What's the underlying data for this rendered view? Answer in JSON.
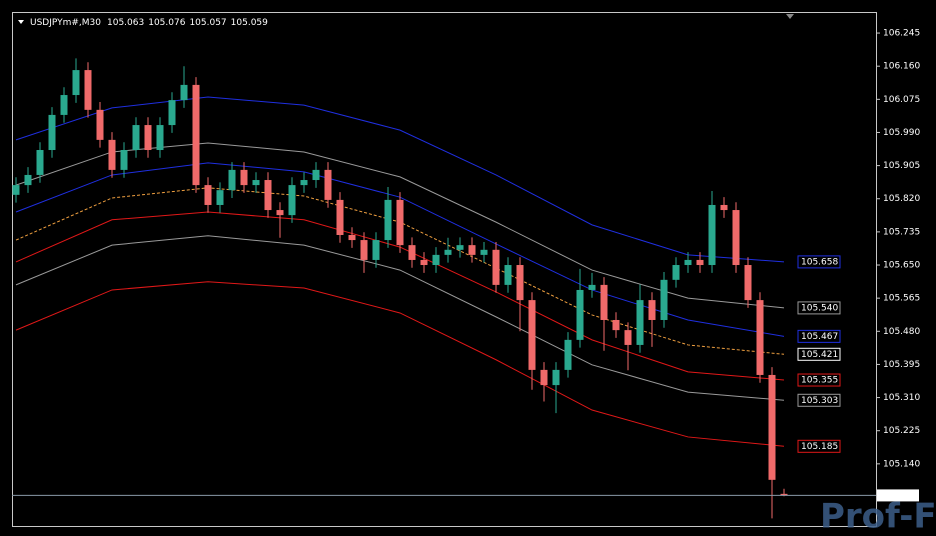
{
  "chart_data": {
    "type": "candlestick",
    "title": "USDJPYm#,M30",
    "header_values": [
      105.063,
      105.076,
      105.057,
      105.059
    ],
    "up_color": "#2aa98f",
    "down_color": "#f06a6a",
    "ylim": [
      104.978,
      106.299
    ],
    "yticks": [
      106.245,
      {
        "value": 106.16,
        "label": "106.160"
      },
      106.075,
      {
        "value": 105.99,
        "label": "105.990"
      },
      105.905,
      {
        "value": 105.82,
        "label": "105.820"
      },
      105.735,
      {
        "value": 105.65,
        "label": "105.650"
      },
      105.565,
      {
        "value": 105.48,
        "label": "105.480"
      },
      105.395,
      {
        "value": 105.31,
        "label": "105.310"
      },
      105.225,
      {
        "value": 105.14,
        "label": "105.140"
      }
    ],
    "open": [
      105.83,
      105.855,
      105.881,
      105.945,
      106.035,
      106.086,
      106.15,
      106.048,
      105.971,
      105.894,
      105.945,
      106.009,
      105.945,
      106.009,
      106.073,
      106.112,
      105.855,
      105.804,
      105.842,
      105.894,
      105.855,
      105.868,
      105.791,
      105.778,
      105.855,
      105.868,
      105.894,
      105.817,
      105.727,
      105.714,
      105.663,
      105.714,
      105.817,
      105.701,
      105.663,
      105.65,
      105.676,
      105.689,
      105.701,
      105.676,
      105.689,
      105.599,
      105.65,
      105.56,
      105.381,
      105.342,
      105.381,
      105.458,
      105.586,
      105.599,
      105.509,
      105.483,
      105.445,
      105.56,
      105.509,
      105.612,
      105.65,
      105.663,
      105.65,
      105.804,
      105.791,
      105.65,
      105.56,
      105.368,
      105.063
    ],
    "high": [
      105.875,
      105.901,
      105.965,
      106.055,
      106.106,
      106.18,
      106.17,
      106.068,
      105.991,
      105.965,
      106.029,
      106.029,
      106.029,
      106.093,
      106.16,
      106.132,
      105.875,
      105.862,
      105.914,
      105.914,
      105.888,
      105.888,
      105.811,
      105.875,
      105.888,
      105.914,
      105.914,
      105.837,
      105.747,
      105.734,
      105.734,
      105.85,
      105.837,
      105.721,
      105.683,
      105.696,
      105.72,
      105.721,
      105.721,
      105.709,
      105.709,
      105.67,
      105.67,
      105.58,
      105.401,
      105.401,
      105.478,
      105.64,
      105.63,
      105.619,
      105.529,
      105.503,
      105.6,
      105.58,
      105.632,
      105.67,
      105.683,
      105.683,
      105.84,
      105.824,
      105.811,
      105.67,
      105.58,
      105.388,
      105.076
    ],
    "low": [
      105.81,
      105.835,
      105.861,
      105.925,
      106.015,
      106.066,
      106.028,
      105.951,
      105.874,
      105.874,
      105.925,
      105.925,
      105.925,
      105.989,
      106.053,
      105.835,
      105.784,
      105.784,
      105.822,
      105.835,
      105.835,
      105.771,
      105.72,
      105.758,
      105.835,
      105.848,
      105.797,
      105.707,
      105.694,
      105.63,
      105.643,
      105.694,
      105.681,
      105.643,
      105.63,
      105.63,
      105.656,
      105.669,
      105.656,
      105.656,
      105.579,
      105.579,
      105.48,
      105.33,
      105.3,
      105.27,
      105.361,
      105.438,
      105.566,
      105.43,
      105.463,
      105.38,
      105.425,
      105.44,
      105.489,
      105.592,
      105.63,
      105.63,
      105.63,
      105.771,
      105.63,
      105.54,
      105.348,
      105.0,
      105.057
    ],
    "close": [
      105.855,
      105.881,
      105.945,
      106.035,
      106.086,
      106.15,
      106.048,
      105.971,
      105.894,
      105.945,
      106.009,
      105.945,
      106.009,
      106.073,
      106.112,
      105.855,
      105.804,
      105.842,
      105.894,
      105.855,
      105.868,
      105.791,
      105.778,
      105.855,
      105.868,
      105.894,
      105.817,
      105.727,
      105.714,
      105.663,
      105.714,
      105.817,
      105.701,
      105.663,
      105.65,
      105.676,
      105.689,
      105.701,
      105.676,
      105.689,
      105.599,
      105.65,
      105.56,
      105.381,
      105.342,
      105.381,
      105.458,
      105.586,
      105.599,
      105.509,
      105.483,
      105.445,
      105.56,
      105.509,
      105.612,
      105.65,
      105.663,
      105.65,
      105.804,
      105.791,
      105.65,
      105.56,
      105.368,
      105.099,
      105.059
    ],
    "band_x": [
      0,
      8,
      16,
      24,
      32,
      40,
      48,
      56,
      64
    ],
    "series": [
      {
        "color": "#1f2fe0",
        "values": [
          105.971,
          106.053,
          106.081,
          106.06,
          105.996,
          105.881,
          105.753,
          105.676,
          105.658
        ],
        "end_label": 105.658
      },
      {
        "color": "#9a9a9a",
        "values": [
          105.855,
          105.94,
          105.963,
          105.94,
          105.876,
          105.76,
          105.637,
          105.565,
          105.54
        ],
        "end_label": {
          "value": 105.54,
          "label": "105.540"
        }
      },
      {
        "color": "#1f2fe0",
        "values": [
          105.786,
          105.881,
          105.912,
          105.889,
          105.824,
          105.704,
          105.586,
          105.509,
          105.467
        ],
        "end_label": 105.467
      },
      {
        "color": "#f0a040",
        "dashed": true,
        "label_color": "#ffffff",
        "values": [
          105.714,
          105.822,
          105.848,
          105.827,
          105.76,
          105.642,
          105.522,
          105.445,
          105.421
        ],
        "end_label": 105.421
      },
      {
        "color": "#e01818",
        "values": [
          105.658,
          105.766,
          105.786,
          105.766,
          105.696,
          105.581,
          105.458,
          105.376,
          105.355
        ],
        "end_label": 105.355
      },
      {
        "color": "#9a9a9a",
        "values": [
          105.599,
          105.701,
          105.725,
          105.701,
          105.637,
          105.517,
          105.394,
          105.324,
          105.303
        ],
        "end_label": 105.303
      },
      {
        "color": "#e01818",
        "values": [
          105.483,
          105.586,
          105.607,
          105.591,
          105.527,
          105.407,
          105.278,
          105.209,
          105.185
        ],
        "end_label": 105.185
      }
    ],
    "last_price": 105.059,
    "watermark": "Prof-FX"
  }
}
